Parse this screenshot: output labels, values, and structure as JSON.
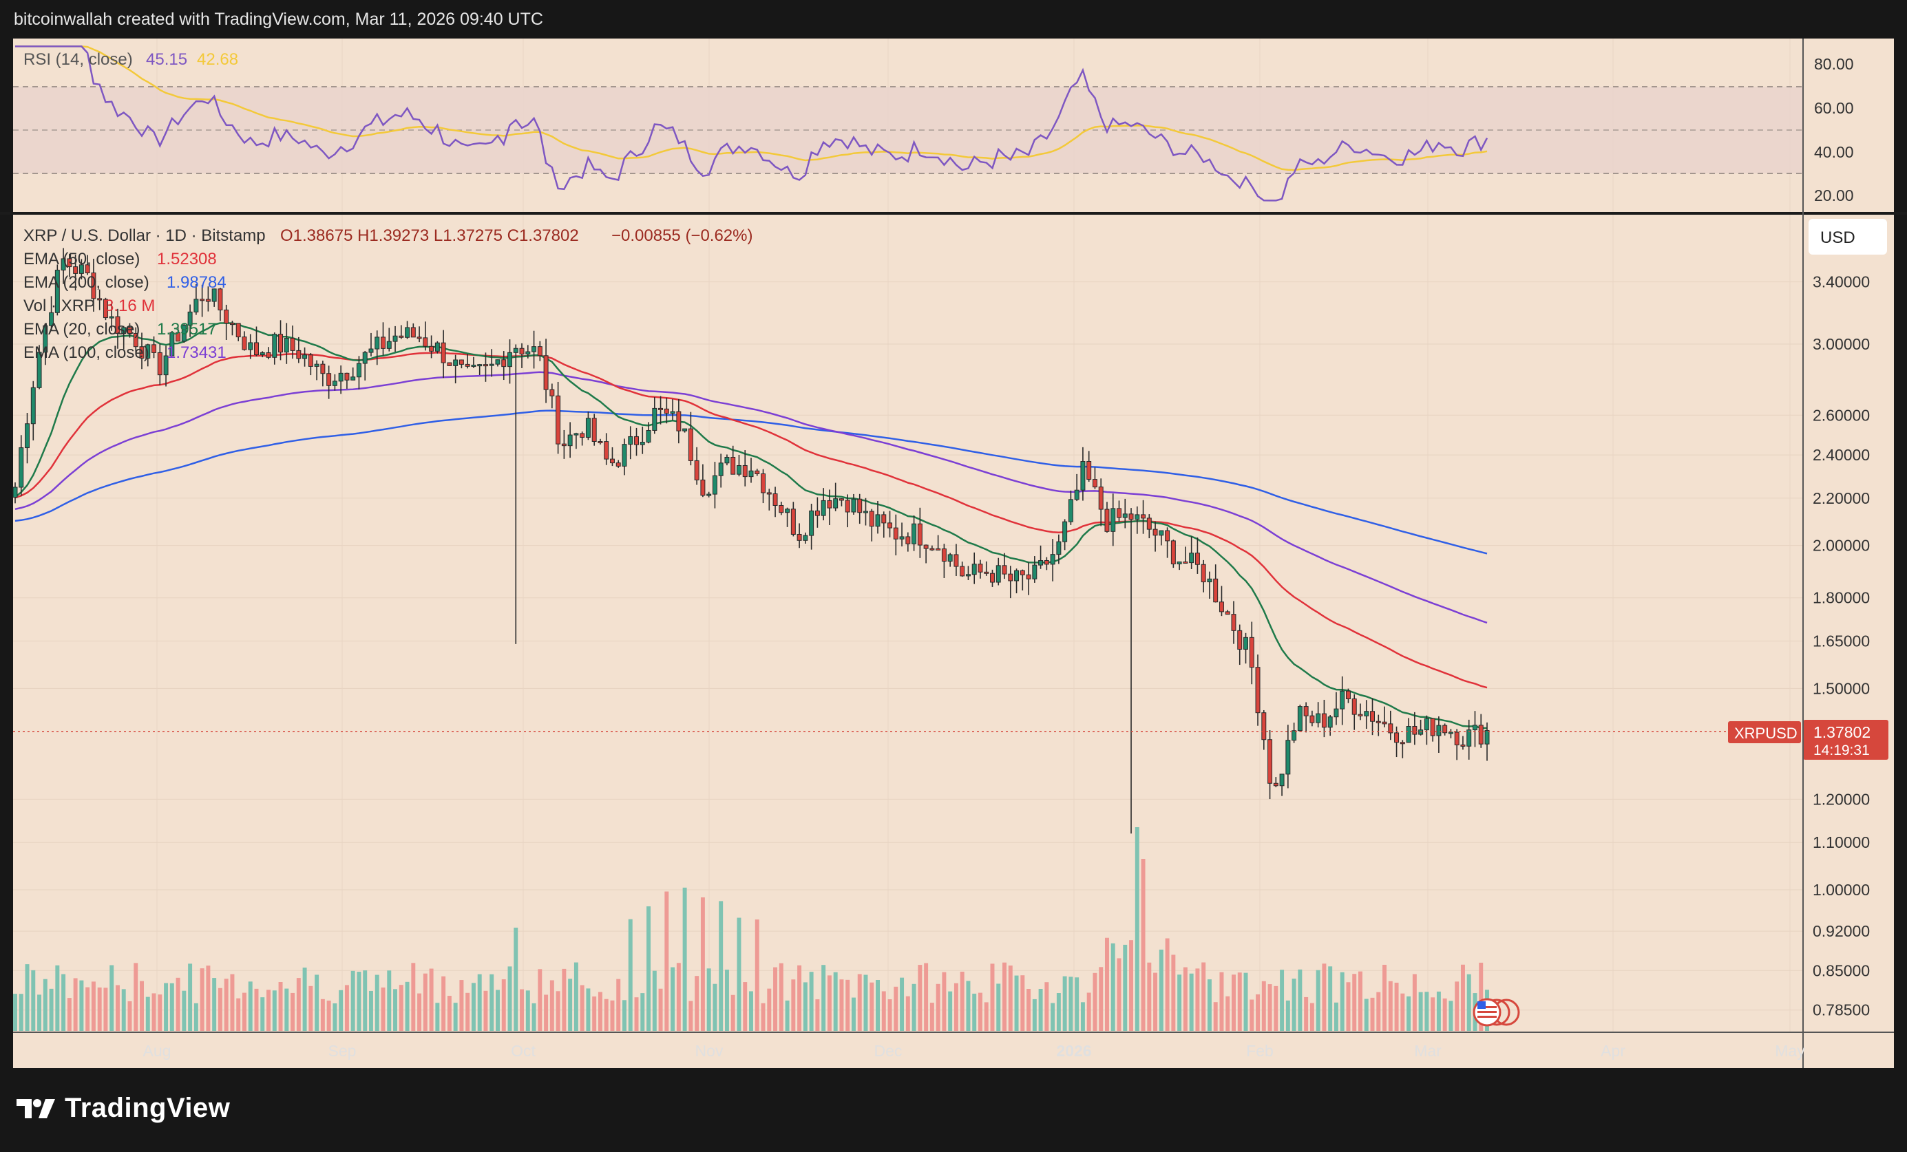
{
  "header": {
    "text": "bitcoinwallah created with TradingView.com, Mar 11, 2026 09:40 UTC"
  },
  "footer": {
    "brand": "TradingView",
    "logo_icon": "tradingview-logo-icon"
  },
  "colors": {
    "background": "#f3e1d0",
    "candle_up": "#1f8a6b",
    "candle_down": "#d9443c",
    "volume_up": "#7fc3b2",
    "volume_down": "#ee9a94",
    "ema20": "#1f7a4a",
    "ema50": "#e0323a",
    "ema100": "#7b3fd4",
    "ema200": "#2f5fe6",
    "rsi": "#7e57c2",
    "rsi_ma": "#f3c93a",
    "price_tag": "#d6473c"
  },
  "rsi_panel": {
    "label": "RSI (14, close)",
    "value1": "45.15",
    "value2": "42.68",
    "axis_ticks": [
      "80.00",
      "60.00",
      "40.00",
      "20.00"
    ]
  },
  "main_legend": {
    "symbol": "XRP / U.S. Dollar · 1D · Bitstamp",
    "ohlc": "O1.38675  H1.39273  L1.37275  C1.37802",
    "change": "−0.00855 (−0.62%)",
    "lines": [
      {
        "label": "EMA (50, close)",
        "value": "1.52308",
        "color": "#e0323a"
      },
      {
        "label": "EMA (200, close)",
        "value": "1.98784",
        "color": "#2f5fe6"
      },
      {
        "label": "Vol · XRP",
        "value": "3.16 M",
        "color": "#e0323a"
      },
      {
        "label": "EMA (20, close)",
        "value": "1.39517",
        "color": "#1f7a4a"
      },
      {
        "label": "EMA (100, close)",
        "value": "1.73431",
        "color": "#7b3fd4"
      }
    ]
  },
  "currency_button": "USD",
  "price_tag": {
    "symbol": "XRPUSD",
    "price": "1.37802",
    "countdown": "14:19:31"
  },
  "chart_data": {
    "type": "candlestick",
    "price_axis_ticks": [
      "3.40000",
      "3.00000",
      "2.60000",
      "2.40000",
      "2.20000",
      "2.00000",
      "1.80000",
      "1.65000",
      "1.50000",
      "1.20000",
      "1.10000",
      "1.00000",
      "0.92000",
      "0.85000",
      "0.78500"
    ],
    "price_axis_values": [
      3.4,
      3.0,
      2.6,
      2.4,
      2.2,
      2.0,
      1.8,
      1.65,
      1.5,
      1.2,
      1.1,
      1.0,
      0.92,
      0.85,
      0.785
    ],
    "scale": "log",
    "x_axis_labels": [
      "Aug",
      "Sep",
      "Oct",
      "Nov",
      "Dec",
      "2026",
      "Feb",
      "Mar",
      "Apr",
      "May"
    ],
    "last_price": 1.37802,
    "price_path": [
      {
        "x": "Jul 10",
        "close": 2.25
      },
      {
        "x": "Jul 14",
        "close": 2.95
      },
      {
        "x": "Jul 18",
        "close": 3.55
      },
      {
        "x": "Jul 22",
        "close": 3.45
      },
      {
        "x": "Jul 26",
        "close": 3.15
      },
      {
        "x": "Jul 30",
        "close": 3.05
      },
      {
        "x": "Aug 3",
        "close": 2.85
      },
      {
        "x": "Aug 7",
        "close": 3.1
      },
      {
        "x": "Aug 11",
        "close": 3.35
      },
      {
        "x": "Aug 15",
        "close": 3.15
      },
      {
        "x": "Aug 19",
        "close": 2.95
      },
      {
        "x": "Aug 23",
        "close": 3.0
      },
      {
        "x": "Aug 27",
        "close": 2.95
      },
      {
        "x": "Aug 31",
        "close": 2.8
      },
      {
        "x": "Sep 4",
        "close": 2.85
      },
      {
        "x": "Sep 8",
        "close": 2.95
      },
      {
        "x": "Sep 12",
        "close": 3.05
      },
      {
        "x": "Sep 16",
        "close": 3.05
      },
      {
        "x": "Sep 20",
        "close": 2.95
      },
      {
        "x": "Sep 24",
        "close": 2.8
      },
      {
        "x": "Sep 28",
        "close": 2.85
      },
      {
        "x": "Oct 2",
        "close": 3.0
      },
      {
        "x": "Oct 6",
        "close": 2.95
      },
      {
        "x": "Oct 10",
        "close": 2.45
      },
      {
        "x": "Oct 14",
        "close": 2.55
      },
      {
        "x": "Oct 18",
        "close": 2.35
      },
      {
        "x": "Oct 22",
        "close": 2.45
      },
      {
        "x": "Oct 26",
        "close": 2.62
      },
      {
        "x": "Oct 30",
        "close": 2.55
      },
      {
        "x": "Nov 3",
        "close": 2.25
      },
      {
        "x": "Nov 7",
        "close": 2.35
      },
      {
        "x": "Nov 11",
        "close": 2.35
      },
      {
        "x": "Nov 15",
        "close": 2.2
      },
      {
        "x": "Nov 19",
        "close": 2.05
      },
      {
        "x": "Nov 23",
        "close": 2.2
      },
      {
        "x": "Nov 27",
        "close": 2.2
      },
      {
        "x": "Dec 1",
        "close": 2.1
      },
      {
        "x": "Dec 5",
        "close": 2.05
      },
      {
        "x": "Dec 9",
        "close": 2.05
      },
      {
        "x": "Dec 13",
        "close": 2.0
      },
      {
        "x": "Dec 17",
        "close": 1.88
      },
      {
        "x": "Dec 21",
        "close": 1.9
      },
      {
        "x": "Dec 25",
        "close": 1.86
      },
      {
        "x": "Dec 29",
        "close": 1.88
      },
      {
        "x": "Jan 2",
        "close": 2.0
      },
      {
        "x": "Jan 6",
        "close": 2.32
      },
      {
        "x": "Jan 10",
        "close": 2.1
      },
      {
        "x": "Jan 14",
        "close": 2.12
      },
      {
        "x": "Jan 18",
        "close": 2.05
      },
      {
        "x": "Jan 22",
        "close": 1.95
      },
      {
        "x": "Jan 26",
        "close": 1.9
      },
      {
        "x": "Jan 30",
        "close": 1.75
      },
      {
        "x": "Feb 3",
        "close": 1.6
      },
      {
        "x": "Feb 5",
        "close": 1.2
      },
      {
        "x": "Feb 7",
        "close": 1.42
      },
      {
        "x": "Feb 11",
        "close": 1.4
      },
      {
        "x": "Feb 15",
        "close": 1.47
      },
      {
        "x": "Feb 19",
        "close": 1.43
      },
      {
        "x": "Feb 23",
        "close": 1.38
      },
      {
        "x": "Feb 27",
        "close": 1.37
      },
      {
        "x": "Mar 3",
        "close": 1.4
      },
      {
        "x": "Mar 7",
        "close": 1.36
      },
      {
        "x": "Mar 11",
        "close": 1.378
      }
    ]
  }
}
